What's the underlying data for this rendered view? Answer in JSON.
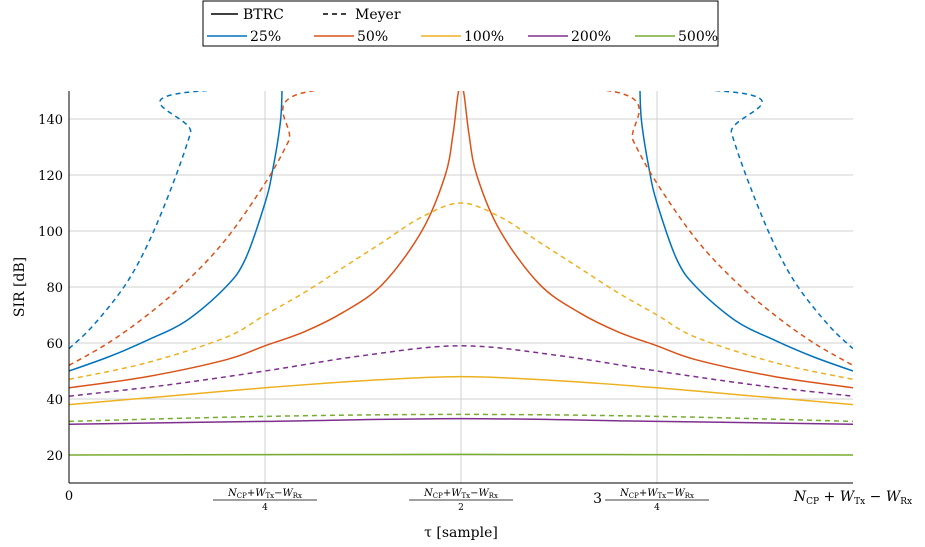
{
  "chart_data": {
    "type": "line",
    "title": "",
    "xlabel": "τ [sample]",
    "ylabel": "SIR [dB]",
    "xlim": [
      0,
      1
    ],
    "ylim": [
      10,
      150
    ],
    "y_ticks": [
      20,
      40,
      60,
      80,
      100,
      120,
      140
    ],
    "x_ticks": [
      {
        "value": 0,
        "label": "0"
      },
      {
        "value": 0.25,
        "label": "(N_CP+W_Tx−W_Rx)/4"
      },
      {
        "value": 0.5,
        "label": "(N_CP+W_Tx−W_Rx)/2"
      },
      {
        "value": 0.75,
        "label": "3(N_CP+W_Tx−W_Rx)/4"
      },
      {
        "value": 1,
        "label": "N_CP + W_Tx − W_Rx"
      }
    ],
    "grid": true,
    "legend_position": "top-center",
    "legend": {
      "styles": [
        {
          "label": "BTRC",
          "dash": "solid"
        },
        {
          "label": "Meyer",
          "dash": "dashed"
        }
      ],
      "rolloffs": [
        {
          "label": "25%",
          "color": "#0072BD"
        },
        {
          "label": "50%",
          "color": "#D95319"
        },
        {
          "label": "100%",
          "color": "#EDB120"
        },
        {
          "label": "200%",
          "color": "#7E2F8E"
        },
        {
          "label": "500%",
          "color": "#77AC30"
        }
      ]
    },
    "series": [
      {
        "rolloff": "25%",
        "style": "solid",
        "color": "#0072BD",
        "points": [
          [
            0,
            50
          ],
          [
            0.05,
            55
          ],
          [
            0.1,
            61
          ],
          [
            0.15,
            68
          ],
          [
            0.2,
            80
          ],
          [
            0.225,
            90
          ],
          [
            0.25,
            110
          ],
          [
            0.26,
            122
          ],
          [
            0.27,
            140
          ],
          [
            0.272,
            155
          ],
          [
            0.728,
            155
          ],
          [
            0.73,
            140
          ],
          [
            0.74,
            122
          ],
          [
            0.75,
            110
          ],
          [
            0.775,
            90
          ],
          [
            0.8,
            80
          ],
          [
            0.85,
            68
          ],
          [
            0.9,
            61
          ],
          [
            0.95,
            55
          ],
          [
            1,
            50
          ]
        ]
      },
      {
        "rolloff": "25%",
        "style": "dashed",
        "color": "#0072BD",
        "points": [
          [
            0,
            58
          ],
          [
            0.03,
            66
          ],
          [
            0.07,
            80
          ],
          [
            0.1,
            95
          ],
          [
            0.13,
            115
          ],
          [
            0.155,
            135
          ],
          [
            0.168,
            150
          ],
          [
            0.832,
            150
          ],
          [
            0.845,
            135
          ],
          [
            0.87,
            115
          ],
          [
            0.9,
            95
          ],
          [
            0.93,
            80
          ],
          [
            0.97,
            66
          ],
          [
            1,
            58
          ]
        ]
      },
      {
        "rolloff": "50%",
        "style": "solid",
        "color": "#D95319",
        "points": [
          [
            0,
            44
          ],
          [
            0.1,
            48
          ],
          [
            0.2,
            54
          ],
          [
            0.25,
            59
          ],
          [
            0.3,
            64
          ],
          [
            0.35,
            71
          ],
          [
            0.4,
            81
          ],
          [
            0.45,
            100
          ],
          [
            0.48,
            120
          ],
          [
            0.49,
            135
          ],
          [
            0.497,
            150
          ],
          [
            0.503,
            150
          ],
          [
            0.51,
            135
          ],
          [
            0.52,
            120
          ],
          [
            0.55,
            100
          ],
          [
            0.6,
            81
          ],
          [
            0.65,
            71
          ],
          [
            0.7,
            64
          ],
          [
            0.75,
            59
          ],
          [
            0.8,
            54
          ],
          [
            0.9,
            48
          ],
          [
            1,
            44
          ]
        ]
      },
      {
        "rolloff": "50%",
        "style": "dashed",
        "color": "#D95319",
        "points": [
          [
            0,
            52
          ],
          [
            0.05,
            60
          ],
          [
            0.1,
            70
          ],
          [
            0.15,
            82
          ],
          [
            0.2,
            97
          ],
          [
            0.25,
            117
          ],
          [
            0.28,
            132
          ],
          [
            0.31,
            150
          ],
          [
            0.69,
            150
          ],
          [
            0.72,
            132
          ],
          [
            0.75,
            117
          ],
          [
            0.8,
            97
          ],
          [
            0.85,
            82
          ],
          [
            0.9,
            70
          ],
          [
            0.95,
            60
          ],
          [
            1,
            52
          ]
        ]
      },
      {
        "rolloff": "100%",
        "style": "solid",
        "color": "#EDB120",
        "points": [
          [
            0,
            38
          ],
          [
            0.125,
            41
          ],
          [
            0.25,
            44
          ],
          [
            0.375,
            46.5
          ],
          [
            0.5,
            48
          ],
          [
            0.625,
            46.5
          ],
          [
            0.75,
            44
          ],
          [
            0.875,
            41
          ],
          [
            1,
            38
          ]
        ]
      },
      {
        "rolloff": "100%",
        "style": "dashed",
        "color": "#EDB120",
        "points": [
          [
            0,
            47
          ],
          [
            0.1,
            53
          ],
          [
            0.2,
            62
          ],
          [
            0.25,
            70
          ],
          [
            0.3,
            78
          ],
          [
            0.35,
            87
          ],
          [
            0.4,
            96
          ],
          [
            0.45,
            105
          ],
          [
            0.5,
            110
          ],
          [
            0.55,
            105
          ],
          [
            0.6,
            96
          ],
          [
            0.65,
            87
          ],
          [
            0.7,
            78
          ],
          [
            0.75,
            70
          ],
          [
            0.8,
            62
          ],
          [
            0.9,
            53
          ],
          [
            1,
            47
          ]
        ]
      },
      {
        "rolloff": "200%",
        "style": "solid",
        "color": "#7E2F8E",
        "points": [
          [
            0,
            31
          ],
          [
            0.25,
            32
          ],
          [
            0.5,
            33
          ],
          [
            0.75,
            32
          ],
          [
            1,
            31
          ]
        ]
      },
      {
        "rolloff": "200%",
        "style": "dashed",
        "color": "#7E2F8E",
        "points": [
          [
            0,
            41
          ],
          [
            0.125,
            45
          ],
          [
            0.25,
            50
          ],
          [
            0.375,
            55.5
          ],
          [
            0.5,
            59
          ],
          [
            0.625,
            55.5
          ],
          [
            0.75,
            50
          ],
          [
            0.875,
            45
          ],
          [
            1,
            41
          ]
        ]
      },
      {
        "rolloff": "500%",
        "style": "solid",
        "color": "#77AC30",
        "points": [
          [
            0,
            20
          ],
          [
            0.5,
            20.2
          ],
          [
            1,
            20
          ]
        ]
      },
      {
        "rolloff": "500%",
        "style": "dashed",
        "color": "#77AC30",
        "points": [
          [
            0,
            32
          ],
          [
            0.25,
            33.8
          ],
          [
            0.5,
            34.5
          ],
          [
            0.75,
            33.8
          ],
          [
            1,
            32
          ]
        ]
      }
    ]
  }
}
